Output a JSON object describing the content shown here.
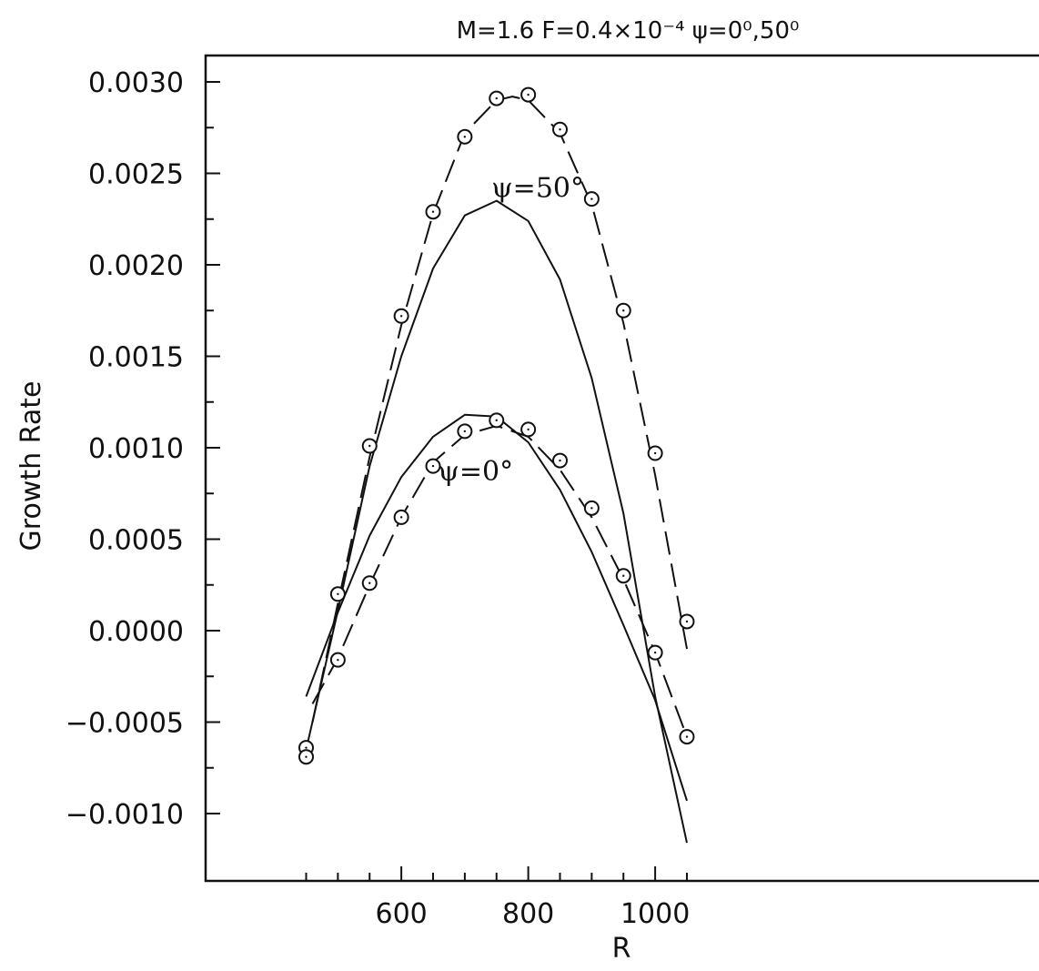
{
  "chart_data": {
    "type": "line",
    "title": "M=1.6  F=0.4×10⁻⁴  ψ=0⁰,50⁰",
    "xlabel": "R",
    "ylabel": "Growth Rate",
    "xlim": [
      420,
      1070
    ],
    "ylim": [
      -0.0013,
      0.00315
    ],
    "xticks": [
      600,
      800,
      1000
    ],
    "yticks": [
      -0.001,
      -0.0005,
      0.0,
      0.0005,
      0.001,
      0.0015,
      0.002,
      0.0025,
      0.003
    ],
    "xtick_labels": [
      "600",
      "800",
      "1000"
    ],
    "ytick_labels": [
      "−0.0010",
      "−0.0005",
      "0.0000",
      "0.0005",
      "0.0010",
      "0.0015",
      "0.0020",
      "0.0025",
      "0.0030"
    ],
    "grid": false,
    "legend": "none",
    "annotations": [
      {
        "text": "ψ=50°",
        "x": 815,
        "y": 0.00237
      },
      {
        "text": "ψ=0°",
        "x": 717,
        "y": 0.00082
      }
    ],
    "series": [
      {
        "style": "dashed-markers",
        "marker": "circle",
        "x": [
          450,
          450,
          500,
          500,
          550,
          550,
          600,
          600,
          650,
          650,
          700,
          700,
          750,
          750,
          800,
          800,
          850,
          850,
          900,
          900,
          950,
          950,
          1000,
          1000,
          1050,
          1050
        ],
        "y": [
          -0.00064,
          -0.00069,
          0.0002,
          -0.00016,
          0.00101,
          0.00026,
          0.00172,
          0.00062,
          0.00229,
          0.0009,
          0.0027,
          0.00109,
          0.00291,
          0.00115,
          0.00293,
          0.0011,
          0.00274,
          0.00093,
          0.00236,
          0.00067,
          0.00175,
          0.0003,
          0.00097,
          -0.00012,
          5e-05,
          -0.00058
        ]
      },
      {
        "style": "dashed",
        "x": [
          460,
          500,
          550,
          600,
          650,
          700,
          750,
          775,
          800,
          850,
          900,
          950,
          1000,
          1050
        ],
        "y": [
          -0.0005,
          0.00015,
          0.00095,
          0.00167,
          0.00228,
          0.00272,
          0.0029,
          0.00292,
          0.0029,
          0.00272,
          0.00233,
          0.00168,
          0.00085,
          -0.0001
        ]
      },
      {
        "style": "dashed",
        "x": [
          460,
          500,
          550,
          600,
          650,
          700,
          750,
          800,
          850,
          900,
          950,
          1000,
          1050
        ],
        "y": [
          -0.0004,
          -0.00015,
          0.00025,
          0.00062,
          0.00092,
          0.00107,
          0.00112,
          0.00106,
          0.00088,
          0.00062,
          0.00028,
          -0.00012,
          -0.00058
        ]
      },
      {
        "style": "solid",
        "x": [
          450,
          500,
          550,
          600,
          650,
          700,
          750,
          800,
          850,
          900,
          950,
          1000,
          1050
        ],
        "y": [
          -0.00065,
          0.00011,
          0.0009,
          0.0015,
          0.00198,
          0.00227,
          0.00235,
          0.00224,
          0.00192,
          0.00138,
          0.00064,
          -0.00036,
          -0.00116
        ]
      },
      {
        "style": "solid",
        "x": [
          450,
          500,
          550,
          600,
          650,
          700,
          750,
          800,
          850,
          900,
          950,
          1000,
          1050
        ],
        "y": [
          -0.00036,
          0.0001,
          0.00052,
          0.00084,
          0.00106,
          0.00118,
          0.00117,
          0.00103,
          0.00077,
          0.00043,
          3e-05,
          -0.00038,
          -0.00093
        ]
      }
    ]
  }
}
